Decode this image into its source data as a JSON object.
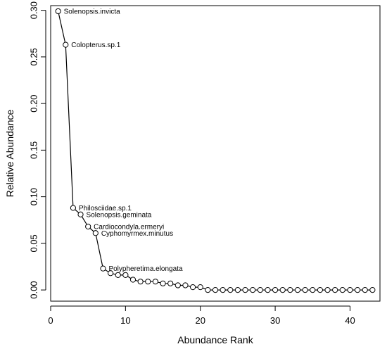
{
  "chart_data": {
    "type": "line",
    "xlabel": "Abundance Rank",
    "ylabel": "Relative Abundance",
    "xlim": [
      0,
      44
    ],
    "ylim": [
      -0.012,
      0.305
    ],
    "x_ticks": [
      0,
      10,
      20,
      30,
      40
    ],
    "y_ticks": [
      0.0,
      0.05,
      0.1,
      0.15,
      0.2,
      0.25,
      0.3
    ],
    "x_tick_labels": [
      "0",
      "10",
      "20",
      "30",
      "40"
    ],
    "y_tick_labels": [
      "0.00",
      "0.05",
      "0.10",
      "0.15",
      "0.20",
      "0.25",
      "0.30"
    ],
    "x": [
      1,
      2,
      3,
      4,
      5,
      6,
      7,
      8,
      9,
      10,
      11,
      12,
      13,
      14,
      15,
      16,
      17,
      18,
      19,
      20,
      21,
      22,
      23,
      24,
      25,
      26,
      27,
      28,
      29,
      30,
      31,
      32,
      33,
      34,
      35,
      36,
      37,
      38,
      39,
      40,
      41,
      42,
      43
    ],
    "values": [
      0.299,
      0.263,
      0.088,
      0.081,
      0.068,
      0.061,
      0.023,
      0.018,
      0.016,
      0.016,
      0.011,
      0.009,
      0.009,
      0.009,
      0.007,
      0.007,
      0.005,
      0.005,
      0.003,
      0.003,
      0.0,
      0.0,
      0.0,
      0.0,
      0.0,
      0.0,
      0.0,
      0.0,
      0.0,
      0.0,
      0.0,
      0.0,
      0.0,
      0.0,
      0.0,
      0.0,
      0.0,
      0.0,
      0.0,
      0.0,
      0.0,
      0.0,
      0.0
    ],
    "annotations": [
      {
        "rank": 1,
        "text": "Solenopsis.invicta"
      },
      {
        "rank": 2,
        "text": "Colopterus.sp.1"
      },
      {
        "rank": 3,
        "text": "Philosciidae.sp.1"
      },
      {
        "rank": 4,
        "text": "Solenopsis.geminata"
      },
      {
        "rank": 5,
        "text": "Cardiocondyla.ermeryi"
      },
      {
        "rank": 6,
        "text": "Cyphomyrmex.minutus"
      },
      {
        "rank": 7,
        "text": "Polypheretima.elongata"
      }
    ],
    "grid": false,
    "marker": "open-circle"
  }
}
